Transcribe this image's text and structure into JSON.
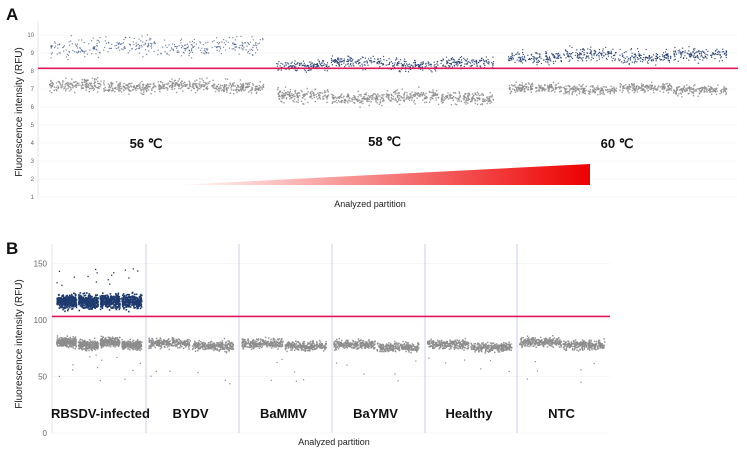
{
  "colors": {
    "positive": "#1f3a6e",
    "negative": "#8c8c8c",
    "threshold": "#e0185a",
    "gradient_start": "#ffffff",
    "gradient_end": "#ee0000",
    "divider": "#c8cfee"
  },
  "chart_data": [
    {
      "panel": "A",
      "type": "scatter",
      "ylabel": "Fluorescence intensity (RFU)",
      "xlabel": "Analyzed partition",
      "yticks": [
        "1",
        "2",
        "3",
        "4",
        "5",
        "6",
        "7",
        "8",
        "9",
        "10"
      ],
      "threshold": 8.15,
      "gradient": "annealing temperature increasing",
      "groups": [
        {
          "label": "56 ℃",
          "wells": 4,
          "positive": {
            "mean": 9.35,
            "spread": 0.5
          },
          "negative": {
            "mean": 7.2,
            "spread": 0.3
          }
        },
        {
          "label": "58 ℃",
          "wells": 4,
          "positive": {
            "mean": 8.4,
            "spread": 0.3
          },
          "negative": {
            "mean": 6.6,
            "spread": 0.35
          }
        },
        {
          "label": "60 ℃",
          "wells": 4,
          "positive": {
            "mean": 8.85,
            "spread": 0.35
          },
          "negative": {
            "mean": 7.05,
            "spread": 0.25
          }
        }
      ]
    },
    {
      "panel": "B",
      "type": "scatter",
      "ylabel": "Fluorescence intensity (RFU)",
      "xlabel": "Analyzed partition",
      "yticks": [
        "0",
        "50",
        "100",
        "150"
      ],
      "ylim": [
        0,
        160
      ],
      "threshold": 103,
      "groups": [
        {
          "label": "RBSDV-infected",
          "wells": 4,
          "positive": {
            "mean": 117,
            "spread": 6
          },
          "negative": {
            "mean": 80,
            "spread": 4
          }
        },
        {
          "label": "BYDV",
          "wells": 2,
          "negative": {
            "mean": 79,
            "spread": 4
          }
        },
        {
          "label": "BaMMV",
          "wells": 2,
          "negative": {
            "mean": 79,
            "spread": 4
          }
        },
        {
          "label": "BaYMV",
          "wells": 2,
          "negative": {
            "mean": 78,
            "spread": 4
          }
        },
        {
          "label": "Healthy",
          "wells": 2,
          "negative": {
            "mean": 78,
            "spread": 4
          }
        },
        {
          "label": "NTC",
          "wells": 2,
          "negative": {
            "mean": 80,
            "spread": 4
          }
        }
      ]
    }
  ]
}
